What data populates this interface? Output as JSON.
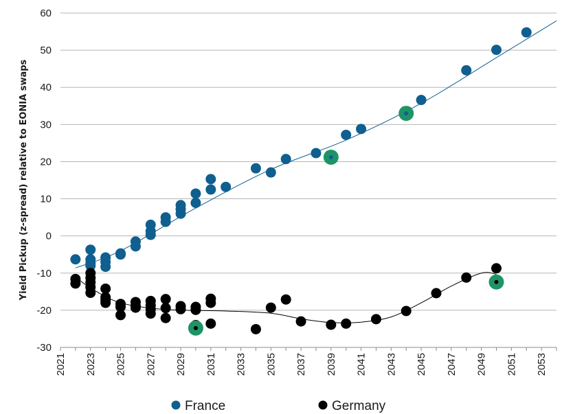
{
  "chart_data": {
    "type": "scatter",
    "title": "",
    "xlabel": "",
    "ylabel": "Yield Pickup (z-spread) relative to EONIA swaps",
    "xlim": [
      2021,
      2054
    ],
    "ylim": [
      -30,
      60
    ],
    "x_ticks": [
      "2021",
      "2023",
      "2025",
      "2027",
      "2029",
      "2031",
      "2033",
      "2035",
      "2037",
      "2039",
      "2041",
      "2043",
      "2045",
      "2047",
      "2049",
      "2051",
      "2053"
    ],
    "y_ticks": [
      60,
      50,
      40,
      30,
      20,
      10,
      0,
      -10,
      -20,
      -30
    ],
    "grid": "horizontal",
    "legend_position": "bottom",
    "colors": {
      "France": "#0f5f8f",
      "Germany": "#000000",
      "highlight": "#1e9466"
    },
    "series": [
      {
        "name": "France",
        "color": "#0f5f8f",
        "points": [
          [
            2022,
            -6.3
          ],
          [
            2023,
            -3.7
          ],
          [
            2023,
            -6.3
          ],
          [
            2023,
            -7.3
          ],
          [
            2023,
            -8.0
          ],
          [
            2024,
            -5.8
          ],
          [
            2024,
            -7.0
          ],
          [
            2024,
            -8.3
          ],
          [
            2025,
            -4.7
          ],
          [
            2025,
            -5.0
          ],
          [
            2026,
            -1.5
          ],
          [
            2026,
            -2.8
          ],
          [
            2027,
            3.0
          ],
          [
            2027,
            1.3
          ],
          [
            2027,
            0.3
          ],
          [
            2028,
            5.0
          ],
          [
            2028,
            3.8
          ],
          [
            2029,
            8.3
          ],
          [
            2029,
            7.2
          ],
          [
            2029,
            6.0
          ],
          [
            2030,
            11.4
          ],
          [
            2030,
            8.9
          ],
          [
            2031,
            15.3
          ],
          [
            2031,
            12.5
          ],
          [
            2032,
            13.2
          ],
          [
            2034,
            18.2
          ],
          [
            2035,
            17.1
          ],
          [
            2036,
            20.7
          ],
          [
            2038,
            22.3
          ],
          [
            2039,
            21.2
          ],
          [
            2040,
            27.2
          ],
          [
            2041,
            28.8
          ],
          [
            2044,
            33.0
          ],
          [
            2045,
            36.6
          ],
          [
            2048,
            44.6
          ],
          [
            2050,
            50.1
          ],
          [
            2052,
            54.8
          ]
        ],
        "highlighted": [
          [
            2039,
            21.2
          ],
          [
            2044,
            33.0
          ]
        ],
        "trend": [
          [
            2022,
            -8.6
          ],
          [
            2025,
            -4.0
          ],
          [
            2030,
            7.5
          ],
          [
            2035,
            17.9
          ],
          [
            2040,
            25.8
          ],
          [
            2045,
            35.7
          ],
          [
            2050,
            48.0
          ],
          [
            2054,
            57.9
          ]
        ]
      },
      {
        "name": "Germany",
        "color": "#000000",
        "points": [
          [
            2022,
            -11.6
          ],
          [
            2022,
            -12.8
          ],
          [
            2023,
            -10.0
          ],
          [
            2023,
            -11.3
          ],
          [
            2023,
            -12.5
          ],
          [
            2023,
            -13.8
          ],
          [
            2023,
            -15.3
          ],
          [
            2024,
            -14.2
          ],
          [
            2024,
            -16.5
          ],
          [
            2024,
            -17.3
          ],
          [
            2024,
            -18.0
          ],
          [
            2025,
            -18.3
          ],
          [
            2025,
            -19.1
          ],
          [
            2025,
            -21.3
          ],
          [
            2026,
            -17.8
          ],
          [
            2026,
            -18.8
          ],
          [
            2026,
            -19.3
          ],
          [
            2027,
            -17.5
          ],
          [
            2027,
            -18.7
          ],
          [
            2027,
            -19.8
          ],
          [
            2027,
            -20.9
          ],
          [
            2028,
            -17.0
          ],
          [
            2028,
            -19.4
          ],
          [
            2028,
            -22.1
          ],
          [
            2029,
            -18.9
          ],
          [
            2029,
            -19.7
          ],
          [
            2030,
            -19.1
          ],
          [
            2030,
            -19.9
          ],
          [
            2030,
            -24.0
          ],
          [
            2031,
            -16.9
          ],
          [
            2031,
            -18.0
          ],
          [
            2031,
            -23.6
          ],
          [
            2034,
            -25.1
          ],
          [
            2035,
            -19.3
          ],
          [
            2036,
            -17.1
          ],
          [
            2037,
            -23.0
          ],
          [
            2039,
            -23.9
          ],
          [
            2040,
            -23.6
          ],
          [
            2042,
            -22.4
          ],
          [
            2044,
            -20.2
          ],
          [
            2046,
            -15.4
          ],
          [
            2048,
            -11.2
          ],
          [
            2050,
            -8.7
          ],
          [
            2050,
            -12.3
          ]
        ],
        "highlighted": [
          [
            2030,
            -24.8
          ],
          [
            2050,
            -12.4
          ]
        ],
        "trend": [
          [
            2022,
            -11.0
          ],
          [
            2023,
            -14.0
          ],
          [
            2025,
            -18.0
          ],
          [
            2028,
            -19.8
          ],
          [
            2032,
            -20.2
          ],
          [
            2035,
            -20.8
          ],
          [
            2037,
            -22.3
          ],
          [
            2039,
            -23.3
          ],
          [
            2041,
            -23.2
          ],
          [
            2043,
            -21.8
          ],
          [
            2045,
            -18.0
          ],
          [
            2047,
            -13.5
          ],
          [
            2049,
            -10.0
          ],
          [
            2050,
            -10.3
          ]
        ]
      }
    ]
  }
}
